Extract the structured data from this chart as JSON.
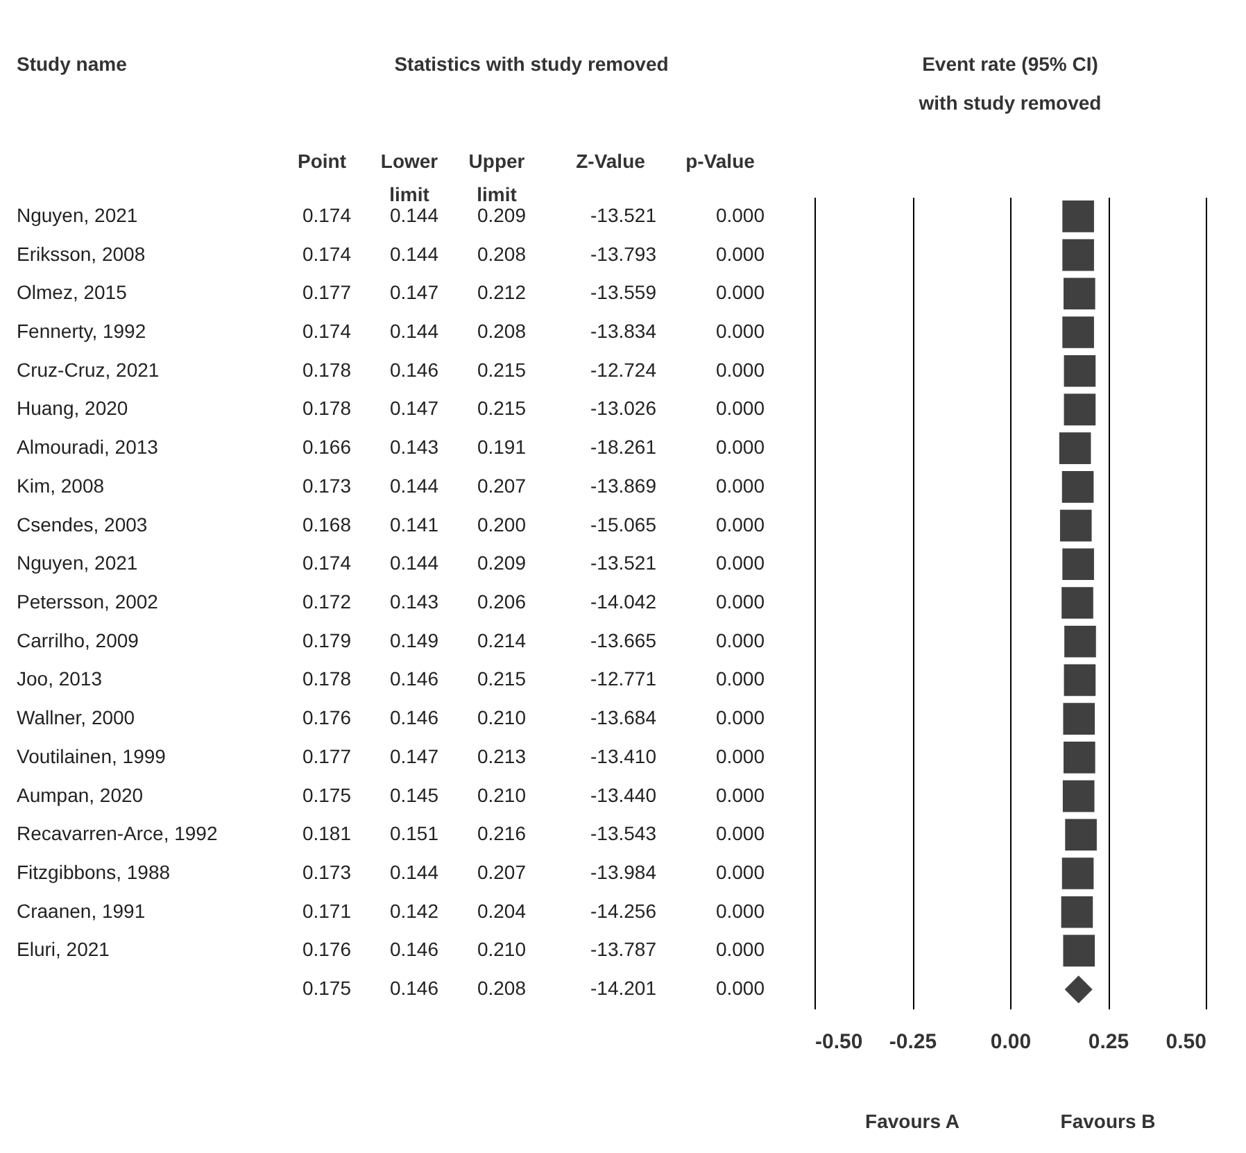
{
  "chart_data": {
    "type": "scatter",
    "orientation": "horizontal",
    "categories": [
      null,
      null,
      null,
      null,
      null,
      null,
      null,
      null,
      null,
      null,
      null,
      null,
      null,
      null,
      null,
      null,
      null,
      null,
      null,
      null,
      null
    ],
    "series": [
      {
        "marker": "square",
        "color": "#404040",
        "values": [
          0.174,
          0.174,
          0.177,
          0.174,
          0.178,
          0.178,
          0.166,
          0.173,
          0.168,
          0.174,
          0.172,
          0.179,
          0.178,
          0.176,
          0.177,
          0.175,
          0.181,
          0.173,
          0.171,
          0.176,
          null
        ]
      },
      {
        "marker": "diamond",
        "color": "#404040",
        "values": [
          null,
          null,
          null,
          null,
          null,
          null,
          null,
          null,
          null,
          null,
          null,
          null,
          null,
          null,
          null,
          null,
          null,
          null,
          null,
          null,
          0.175
        ]
      }
    ],
    "xlim": [
      -0.5,
      0.5
    ],
    "xticks": [
      {
        "value": -0.5,
        "label": "-0.50"
      },
      {
        "value": -0.25,
        "label": "-0.25"
      },
      {
        "value": 0,
        "label": "0.00"
      },
      {
        "value": 0.25,
        "label": "0.25"
      },
      {
        "value": 0.5,
        "label": "0.50"
      }
    ],
    "grid": "x",
    "tick_labels": "x",
    "annotations": [
      "Study name",
      "Statistics with study removed",
      "Event rate (95% CI)",
      "with study removed",
      "Point",
      "Lower limit",
      "Upper limit",
      "Z-Value",
      "p-Value",
      "Favours A",
      "Favours B",
      "Nguyen, 2021",
      "Eriksson, 2008",
      "Olmez, 2015",
      "Fennerty, 1992",
      "Cruz-Cruz, 2021",
      "Huang, 2020",
      "Almouradi, 2013",
      "Kim, 2008",
      "Csendes, 2003",
      "Nguyen, 2021",
      "Petersson, 2002",
      "Carrilho, 2009",
      "Joo, 2013",
      "Wallner, 2000",
      "Voutilainen, 1999",
      "Aumpan, 2020",
      "Recavarren-Arce, 1992",
      "Fitzgibbons, 1988",
      "Craanen, 1991",
      "Eluri, 2021",
      "0.174",
      "0.144",
      "0.209",
      "-13.521",
      "0.000",
      "0.174",
      "0.144",
      "0.208",
      "-13.793",
      "0.000",
      "0.177",
      "0.147",
      "0.212",
      "-13.559",
      "0.000",
      "0.174",
      "0.144",
      "0.208",
      "-13.834",
      "0.000",
      "0.178",
      "0.146",
      "0.215",
      "-12.724",
      "0.000",
      "0.178",
      "0.147",
      "0.215",
      "-13.026",
      "0.000",
      "0.166",
      "0.143",
      "0.191",
      "-18.261",
      "0.000",
      "0.173",
      "0.144",
      "0.207",
      "-13.869",
      "0.000",
      "0.168",
      "0.141",
      "0.200",
      "-15.065",
      "0.000",
      "0.174",
      "0.144",
      "0.209",
      "-13.521",
      "0.000",
      "0.172",
      "0.143",
      "0.206",
      "-14.042",
      "0.000",
      "0.179",
      "0.149",
      "0.214",
      "-13.665",
      "0.000",
      "0.178",
      "0.146",
      "0.215",
      "-12.771",
      "0.000",
      "0.176",
      "0.146",
      "0.210",
      "-13.684",
      "0.000",
      "0.177",
      "0.147",
      "0.213",
      "-13.410",
      "0.000",
      "0.175",
      "0.145",
      "0.210",
      "-13.440",
      "0.000",
      "0.181",
      "0.151",
      "0.216",
      "-13.543",
      "0.000",
      "0.173",
      "0.144",
      "0.207",
      "-13.984",
      "0.000",
      "0.171",
      "0.142",
      "0.204",
      "-14.256",
      "0.000",
      "0.176",
      "0.146",
      "0.210",
      "-13.787",
      "0.000",
      "0.175",
      "0.146",
      "0.208",
      "-14.201",
      "0.000"
    ]
  }
}
